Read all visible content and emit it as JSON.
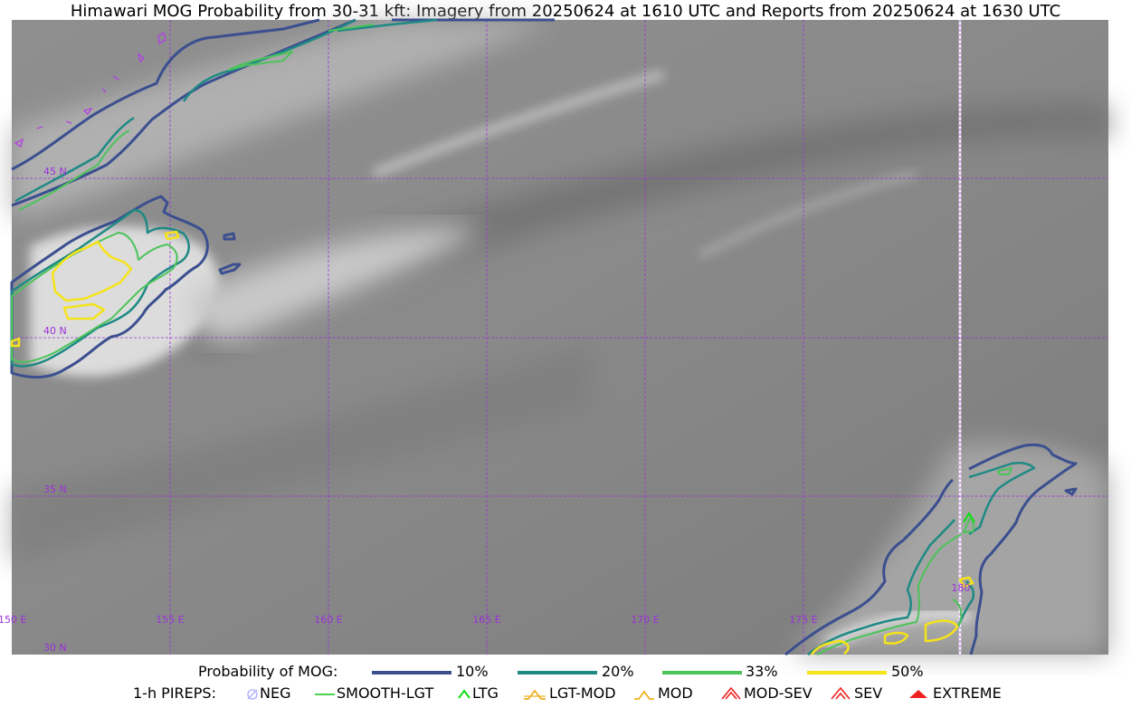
{
  "title": "Himawari MOG Probability from 30-31 kft: Imagery from 20250624 at 1610 UTC and Reports from 20250624 at 1630 UTC",
  "map": {
    "lon_labels": [
      "150 E",
      "155 E",
      "160 E",
      "165 E",
      "170 E",
      "175 E",
      "180"
    ],
    "lat_labels": [
      "45 N",
      "40 N",
      "35 N",
      "30 N"
    ],
    "grid_color": "#9b30d9",
    "extent": {
      "lon_min": 150,
      "lon_max": 184.6,
      "lat_min": 30,
      "lat_max": 50
    }
  },
  "legend": {
    "probability_title": "Probability of MOG:",
    "levels": [
      {
        "label": "10%",
        "color": "#3b4f8f"
      },
      {
        "label": "20%",
        "color": "#1f8a84"
      },
      {
        "label": "33%",
        "color": "#4cc35a"
      },
      {
        "label": "50%",
        "color": "#f5e31a"
      }
    ],
    "pireps_title": "1-h PIREPS:",
    "pireps": [
      {
        "label": "NEG",
        "icon": "neg-icon",
        "color": "#b8b8ff"
      },
      {
        "label": "SMOOTH-LGT",
        "icon": "smooth-lgt-icon",
        "color": "#33cc33"
      },
      {
        "label": "LTG",
        "icon": "ltg-icon",
        "color": "#11dd11"
      },
      {
        "label": "LGT-MOD",
        "icon": "lgt-mod-icon",
        "color": "#f0b020"
      },
      {
        "label": "MOD",
        "icon": "mod-icon",
        "color": "#f0b020"
      },
      {
        "label": "MOD-SEV",
        "icon": "mod-sev-icon",
        "color": "#ee2222"
      },
      {
        "label": "SEV",
        "icon": "sev-icon",
        "color": "#ee2222"
      },
      {
        "label": "EXTREME",
        "icon": "extreme-icon",
        "color": "#ee2222"
      }
    ]
  }
}
